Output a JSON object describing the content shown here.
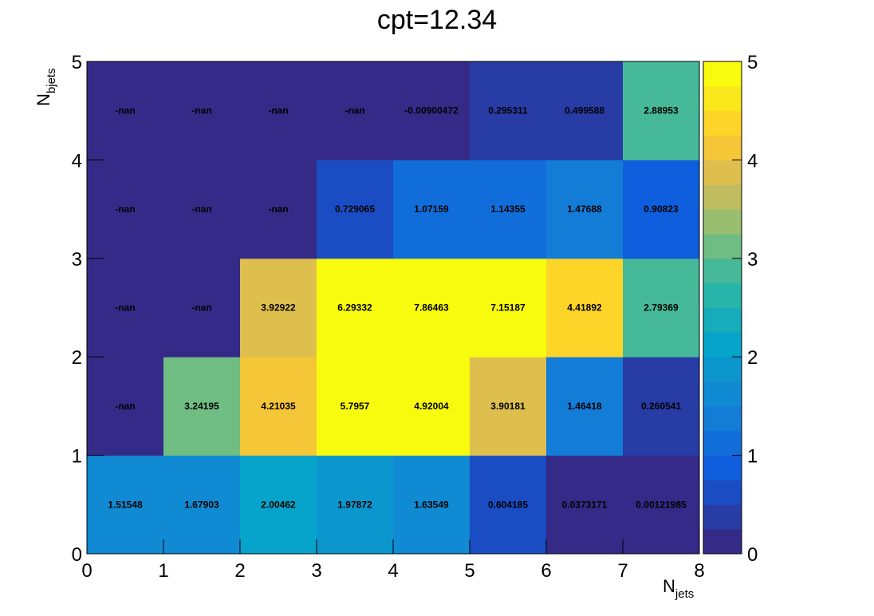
{
  "chart_data": {
    "type": "heatmap",
    "title": "cpt=12.34",
    "xlabel": {
      "base": "N",
      "sub": "jets"
    },
    "ylabel": {
      "base": "N",
      "sub": "bjets"
    },
    "xlim": [
      0,
      8
    ],
    "ylim": [
      0,
      5
    ],
    "x_ticks": [
      "0",
      "1",
      "2",
      "3",
      "4",
      "5",
      "6",
      "7",
      "8"
    ],
    "y_ticks": [
      "0",
      "1",
      "2",
      "3",
      "4",
      "5"
    ],
    "colorbar": {
      "min": 0,
      "max": 5,
      "ticks": [
        "0",
        "1",
        "2",
        "3",
        "4",
        "5"
      ],
      "levels": 20
    },
    "grid": false,
    "rows": [
      {
        "y": 0,
        "values": [
          "1.51548",
          "1.67903",
          "2.00462",
          "1.97872",
          "1.63549",
          "0.604185",
          "0.0373171",
          "0.00121985"
        ]
      },
      {
        "y": 1,
        "values": [
          "-nan",
          "3.24195",
          "4.21035",
          "5.7957",
          "4.92004",
          "3.90181",
          "1.46418",
          "0.260541"
        ]
      },
      {
        "y": 2,
        "values": [
          "-nan",
          "-nan",
          "3.92922",
          "6.29332",
          "7.86463",
          "7.15187",
          "4.41892",
          "2.79369"
        ]
      },
      {
        "y": 3,
        "values": [
          "-nan",
          "-nan",
          "-nan",
          "0.729065",
          "1.07159",
          "1.14355",
          "1.47688",
          "0.90823"
        ]
      },
      {
        "y": 4,
        "values": [
          "-nan",
          "-nan",
          "-nan",
          "-nan",
          "-0.00900472",
          "0.295311",
          "0.499588",
          "2.88953"
        ]
      }
    ]
  }
}
